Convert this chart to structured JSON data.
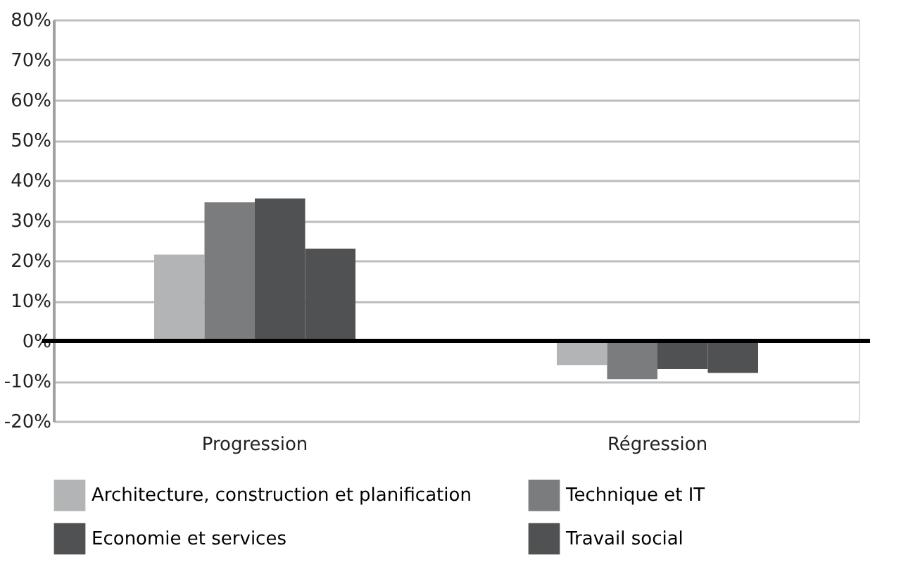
{
  "chart_data": {
    "type": "bar",
    "categories": [
      "Progression",
      "Régression"
    ],
    "series": [
      {
        "name": "Architecture, construction et planification",
        "color": "#b3b4b5",
        "values": [
          21.5,
          -6
        ]
      },
      {
        "name": "Technique et IT",
        "color": "#7b7c7d",
        "values": [
          34.5,
          -9.5
        ]
      },
      {
        "name": "Economie et services",
        "color": "#505152",
        "values": [
          35.5,
          -7
        ]
      },
      {
        "name": "Travail social",
        "color": "#505152",
        "values": [
          23,
          -8
        ]
      }
    ],
    "ylim": [
      -20,
      80
    ],
    "yticks": [
      {
        "value": -20,
        "label": "-20%"
      },
      {
        "value": -10,
        "label": "-10%"
      },
      {
        "value": 0,
        "label": "0%"
      },
      {
        "value": 10,
        "label": "10%"
      },
      {
        "value": 20,
        "label": "20%"
      },
      {
        "value": 30,
        "label": "30%"
      },
      {
        "value": 40,
        "label": "40%"
      },
      {
        "value": 50,
        "label": "50%"
      },
      {
        "value": 60,
        "label": "60%"
      },
      {
        "value": 70,
        "label": "70%"
      },
      {
        "value": 80,
        "label": "80%"
      }
    ],
    "ref_lines": [
      {
        "axis": "y",
        "value": 0,
        "color": "#000000"
      }
    ],
    "grid": "y",
    "legend": "bottom"
  }
}
